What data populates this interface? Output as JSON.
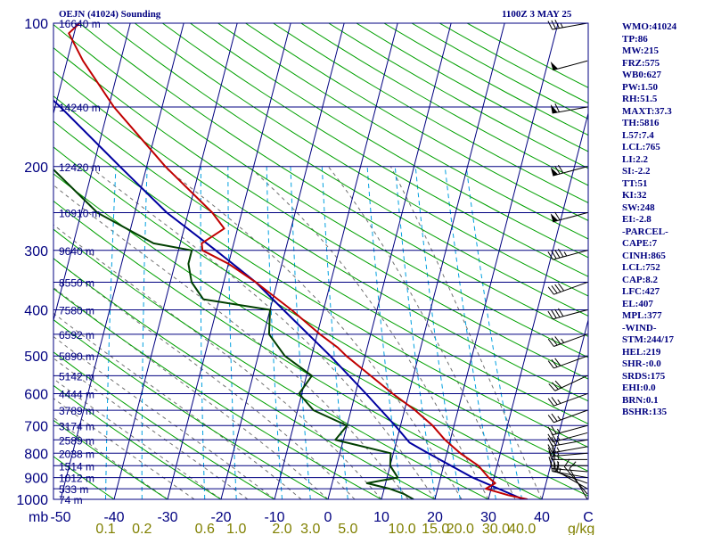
{
  "header": {
    "station": "OEJN (41024) Sounding",
    "time": "1100Z  3 MAY 25"
  },
  "indices": [
    "WMO:41024",
    "TP:86",
    "MW:215",
    "FRZ:575",
    "WB0:627",
    "PW:1.50",
    "RH:51.5",
    "MAXT:37.3",
    "TH:5816",
    "L57:7.4",
    "LCL:765",
    "LI:2.2",
    "SI:-2.2",
    "TT:51",
    "KI:32",
    "SW:248",
    "EI:-2.8",
    "-PARCEL-",
    "CAPE:7",
    "CINH:865",
    "LCL:752",
    "CAP:8.2",
    "LFC:427",
    "EL:407",
    "MPL:377",
    "-WIND-",
    "STM:244/17",
    "HEL:219",
    "SHR-:0.0",
    "SRDS:175",
    "EHI:0.0",
    "BRN:0.1",
    "BSHR:135"
  ],
  "colors": {
    "frame": "#000080",
    "isobar": "#000080",
    "isotherm": "#000080",
    "dry_adiabat": "#00a000",
    "moist_adiabat": "#707070",
    "mixing_ratio": "#00a0e0",
    "temperature": "#c00000",
    "dewpoint": "#004000",
    "parcel": "#0000a0",
    "tick_text": "#000080",
    "mr_text": "#808000",
    "background": "#ffffff"
  },
  "chart_data": {
    "type": "skew-t",
    "pressure_levels_mb": [
      100,
      200,
      300,
      400,
      500,
      600,
      700,
      800,
      900,
      1000
    ],
    "height_labels": [
      {
        "p": 100,
        "label": "16640 m"
      },
      {
        "p": 150,
        "label": "14240 m"
      },
      {
        "p": 200,
        "label": "12420 m"
      },
      {
        "p": 250,
        "label": "10910 m"
      },
      {
        "p": 300,
        "label": "9640 m"
      },
      {
        "p": 350,
        "label": "8550 m"
      },
      {
        "p": 400,
        "label": "7580 m"
      },
      {
        "p": 450,
        "label": "6592 m"
      },
      {
        "p": 500,
        "label": "5890 m"
      },
      {
        "p": 550,
        "label": "5142 m"
      },
      {
        "p": 600,
        "label": "4444 m"
      },
      {
        "p": 650,
        "label": "3789 m"
      },
      {
        "p": 700,
        "label": "3174 m"
      },
      {
        "p": 750,
        "label": "2589 m"
      },
      {
        "p": 800,
        "label": "2038 m"
      },
      {
        "p": 850,
        "label": "1514 m"
      },
      {
        "p": 900,
        "label": "1012 m"
      },
      {
        "p": 950,
        "label": "533 m"
      },
      {
        "p": 1000,
        "label": "74 m"
      }
    ],
    "x_unit": "mb",
    "temp_ticks_c": [
      -50,
      -40,
      -30,
      -20,
      -10,
      0,
      10,
      20,
      30,
      40
    ],
    "temp_end_label": "C",
    "mixing_ratio_ticks": [
      "0.1",
      "0.2",
      "0.6",
      "1.0",
      "2.0",
      "3.0",
      "5.0",
      "10.0",
      "15.0",
      "20.0",
      "30.0",
      "40.0"
    ],
    "mixing_ratio_values": [
      0.1,
      0.2,
      0.6,
      1.0,
      2.0,
      3.0,
      5.0,
      10.0,
      15.0,
      20.0,
      30.0,
      40.0
    ],
    "mixing_ratio_unit": "g/kg",
    "temperature_profile": [
      {
        "p": 1000,
        "t": 37.3
      },
      {
        "p": 980,
        "t": 33.5
      },
      {
        "p": 950,
        "t": 29.0
      },
      {
        "p": 925,
        "t": 30.5
      },
      {
        "p": 900,
        "t": 29.0
      },
      {
        "p": 850,
        "t": 26.5
      },
      {
        "p": 800,
        "t": 22.5
      },
      {
        "p": 750,
        "t": 19.0
      },
      {
        "p": 700,
        "t": 16.0
      },
      {
        "p": 650,
        "t": 12.0
      },
      {
        "p": 600,
        "t": 7.0
      },
      {
        "p": 550,
        "t": 2.0
      },
      {
        "p": 500,
        "t": -3.5
      },
      {
        "p": 480,
        "t": -5.5
      },
      {
        "p": 450,
        "t": -9.5
      },
      {
        "p": 400,
        "t": -16.0
      },
      {
        "p": 350,
        "t": -24.0
      },
      {
        "p": 320,
        "t": -30.0
      },
      {
        "p": 300,
        "t": -35.5
      },
      {
        "p": 290,
        "t": -36.0
      },
      {
        "p": 270,
        "t": -32.5
      },
      {
        "p": 250,
        "t": -35.5
      },
      {
        "p": 200,
        "t": -46.5
      },
      {
        "p": 150,
        "t": -59.0
      },
      {
        "p": 120,
        "t": -67.0
      },
      {
        "p": 105,
        "t": -71.0
      },
      {
        "p": 100,
        "t": -69.5
      }
    ],
    "dewpoint_profile": [
      {
        "p": 1000,
        "t": 16.0
      },
      {
        "p": 975,
        "t": 14.0
      },
      {
        "p": 950,
        "t": 11.0
      },
      {
        "p": 925,
        "t": 6.5
      },
      {
        "p": 900,
        "t": 12.0
      },
      {
        "p": 850,
        "t": 10.0
      },
      {
        "p": 800,
        "t": 9.5
      },
      {
        "p": 750,
        "t": -1.5
      },
      {
        "p": 700,
        "t": 0.0
      },
      {
        "p": 650,
        "t": -7.0
      },
      {
        "p": 600,
        "t": -10.5
      },
      {
        "p": 550,
        "t": -9.0
      },
      {
        "p": 500,
        "t": -15.0
      },
      {
        "p": 450,
        "t": -19.0
      },
      {
        "p": 400,
        "t": -20.0
      },
      {
        "p": 380,
        "t": -33.0
      },
      {
        "p": 350,
        "t": -36.0
      },
      {
        "p": 320,
        "t": -37.5
      },
      {
        "p": 300,
        "t": -37.5
      },
      {
        "p": 290,
        "t": -45.0
      },
      {
        "p": 250,
        "t": -57.0
      },
      {
        "p": 200,
        "t": -68.0
      },
      {
        "p": 150,
        "t": -80.0
      },
      {
        "p": 120,
        "t": -85.0
      },
      {
        "p": 100,
        "t": -90.0
      }
    ],
    "parcel_profile": [
      {
        "p": 1000,
        "t": 36.5
      },
      {
        "p": 900,
        "t": 26.0
      },
      {
        "p": 800,
        "t": 16.5
      },
      {
        "p": 760,
        "t": 12.5
      },
      {
        "p": 700,
        "t": 9.0
      },
      {
        "p": 600,
        "t": 2.0
      },
      {
        "p": 500,
        "t": -6.5
      },
      {
        "p": 400,
        "t": -17.5
      },
      {
        "p": 350,
        "t": -24.0
      },
      {
        "p": 300,
        "t": -33.0
      },
      {
        "p": 250,
        "t": -44.0
      },
      {
        "p": 200,
        "t": -55.0
      },
      {
        "p": 150,
        "t": -69.0
      },
      {
        "p": 100,
        "t": -90.0
      }
    ],
    "wind_profile": [
      {
        "p": 1000,
        "dir": 330,
        "spd": 10
      },
      {
        "p": 975,
        "dir": 320,
        "spd": 10
      },
      {
        "p": 950,
        "dir": 300,
        "spd": 15
      },
      {
        "p": 925,
        "dir": 290,
        "spd": 15
      },
      {
        "p": 900,
        "dir": 280,
        "spd": 20
      },
      {
        "p": 875,
        "dir": 275,
        "spd": 25
      },
      {
        "p": 850,
        "dir": 270,
        "spd": 25
      },
      {
        "p": 825,
        "dir": 270,
        "spd": 25
      },
      {
        "p": 800,
        "dir": 265,
        "spd": 25
      },
      {
        "p": 775,
        "dir": 260,
        "spd": 25
      },
      {
        "p": 750,
        "dir": 260,
        "spd": 25
      },
      {
        "p": 725,
        "dir": 255,
        "spd": 25
      },
      {
        "p": 700,
        "dir": 255,
        "spd": 25
      },
      {
        "p": 650,
        "dir": 250,
        "spd": 25
      },
      {
        "p": 600,
        "dir": 250,
        "spd": 25
      },
      {
        "p": 550,
        "dir": 245,
        "spd": 30
      },
      {
        "p": 500,
        "dir": 250,
        "spd": 30
      },
      {
        "p": 450,
        "dir": 250,
        "spd": 35
      },
      {
        "p": 400,
        "dir": 255,
        "spd": 40
      },
      {
        "p": 350,
        "dir": 250,
        "spd": 40
      },
      {
        "p": 300,
        "dir": 255,
        "spd": 45
      },
      {
        "p": 250,
        "dir": 255,
        "spd": 60
      },
      {
        "p": 200,
        "dir": 255,
        "spd": 70
      },
      {
        "p": 150,
        "dir": 260,
        "spd": 60
      },
      {
        "p": 120,
        "dir": 255,
        "spd": 50
      },
      {
        "p": 100,
        "dir": 260,
        "spd": 35
      }
    ]
  }
}
